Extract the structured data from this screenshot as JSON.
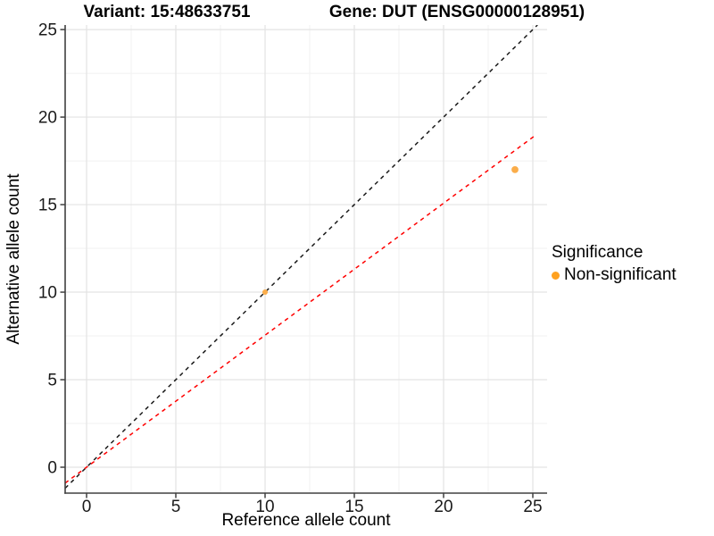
{
  "chart_data": {
    "type": "scatter",
    "title_left": "Variant: 15:48633751",
    "title_right": "Gene: DUT (ENSG00000128951)",
    "xlabel": "Reference allele count",
    "ylabel": "Alternative allele count",
    "xlim": [
      -1.2,
      25.8
    ],
    "ylim": [
      -1.48,
      25.26
    ],
    "xticks": [
      0,
      5,
      10,
      15,
      20,
      25
    ],
    "yticks": [
      0,
      5,
      10,
      15,
      20,
      25
    ],
    "minor_xticks": [
      2.5,
      7.5,
      12.5,
      17.5,
      22.5
    ],
    "minor_yticks": [
      2.5,
      7.5,
      12.5,
      17.5,
      22.5
    ],
    "grid": true,
    "points": [
      {
        "x": 10,
        "y": 10,
        "r": 3.0,
        "color": "#FBAD4A",
        "significance": "Non-significant"
      },
      {
        "x": 24,
        "y": 17,
        "r": 3.9,
        "color": "#FBAD4A",
        "significance": "Non-significant"
      }
    ],
    "lines": [
      {
        "name": "identity-line",
        "slope": 1,
        "intercept": 0,
        "color": "#1A1A1A",
        "style": "dashed"
      },
      {
        "name": "expected-ratio-line",
        "slope": 0.754,
        "intercept": 0,
        "color": "#FF0000",
        "style": "dashed",
        "x_end": 25.2
      }
    ],
    "legend": {
      "title": "Significance",
      "position": "right",
      "items": [
        {
          "label": "Non-significant",
          "color": "#FFA11F"
        }
      ]
    },
    "colors": {
      "grid_major": "#E3E3E3",
      "grid_minor": "#F1F1F1",
      "axis_line": "#404040",
      "tick_label": "#1A1A1A",
      "panel_background": "#FFFFFF"
    }
  }
}
